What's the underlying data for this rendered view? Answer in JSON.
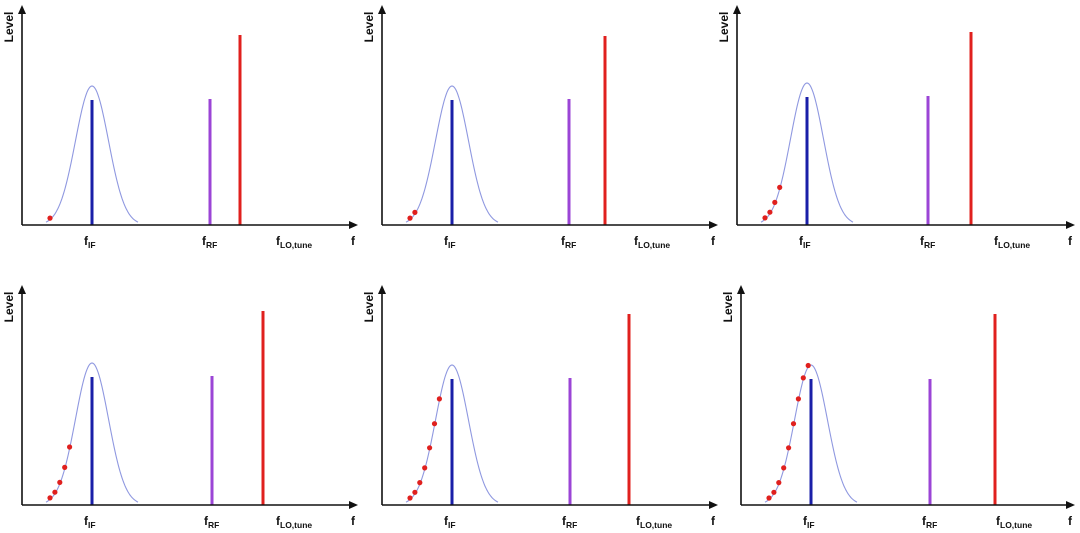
{
  "labels": {
    "y_axis": "Level",
    "x_axis": "f",
    "f_if_main": "f",
    "f_if_sub": "IF",
    "f_rf_main": "f",
    "f_rf_sub": "RF",
    "f_lo_main": "f",
    "f_lo_sub": "LO,tune"
  },
  "colors": {
    "axis": "#111111",
    "if_line": "#1a1fa8",
    "rf_line": "#9b45d6",
    "lo_line": "#e0201e",
    "filter_curve": "#8f98e0",
    "sweep_dots": "#e0201e"
  },
  "panels": [
    {
      "id": "panel-1",
      "sweep_dot_count": 1,
      "lo_position": "shifted-right"
    },
    {
      "id": "panel-2",
      "sweep_dot_count": 2,
      "lo_position": "shifted-right"
    },
    {
      "id": "panel-3",
      "sweep_dot_count": 4,
      "lo_position": "shifted-right"
    },
    {
      "id": "panel-4",
      "sweep_dot_count": 5,
      "lo_position": "shifted-right"
    },
    {
      "id": "panel-5",
      "sweep_dot_count": 7,
      "lo_position": "shifted-right"
    },
    {
      "id": "panel-6",
      "sweep_dot_count": 9,
      "lo_position": "shifted-right"
    }
  ]
}
